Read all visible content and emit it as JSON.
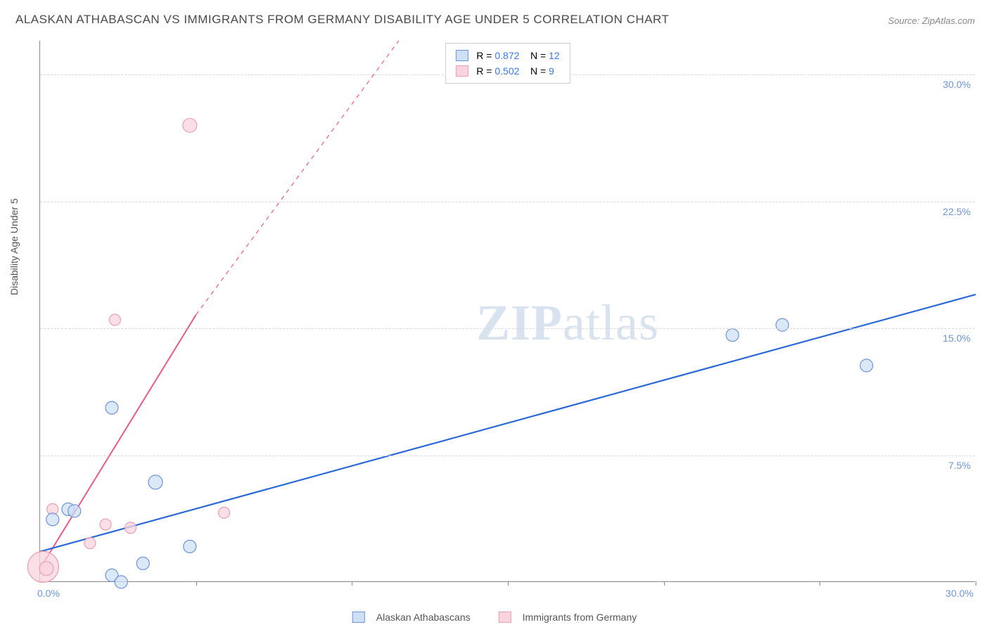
{
  "title": "ALASKAN ATHABASCAN VS IMMIGRANTS FROM GERMANY DISABILITY AGE UNDER 5 CORRELATION CHART",
  "source": "Source: ZipAtlas.com",
  "ylabel": "Disability Age Under 5",
  "watermark": {
    "part1": "ZIP",
    "part2": "atlas"
  },
  "axes": {
    "xmin": 0,
    "xmax": 30,
    "ymin": 0,
    "ymax": 32,
    "x_tick_labels": {
      "min": "0.0%",
      "max": "30.0%"
    },
    "y_ticks": [
      {
        "v": 7.5,
        "label": "7.5%"
      },
      {
        "v": 15.0,
        "label": "15.0%"
      },
      {
        "v": 22.5,
        "label": "22.5%"
      },
      {
        "v": 30.0,
        "label": "30.0%"
      }
    ],
    "x_tick_marks": [
      5,
      10,
      15,
      20,
      25,
      30
    ],
    "grid_color": "#d8d8d8",
    "tick_color": "#6d94d6",
    "axis_color": "#888888"
  },
  "colors": {
    "blue_stroke": "#6d94d6",
    "blue_fill": "#cfe0f5",
    "blue_line": "#2b68d8",
    "pink_stroke": "#e79fb4",
    "pink_fill": "#f9d4de",
    "pink_line": "#e75a8a"
  },
  "stats_legend": {
    "rows": [
      {
        "color": "blue",
        "r_label": "R =",
        "r": "0.872",
        "n_label": "N =",
        "n": "12"
      },
      {
        "color": "pink",
        "r_label": "R =",
        "r": "0.502",
        "n_label": "N =",
        "n": "9"
      }
    ]
  },
  "bottom_legend": {
    "series1": "Alaskan Athabascans",
    "series2": "Immigrants from Germany"
  },
  "series_blue": {
    "label": "Alaskan Athabascans",
    "marker_radius": 9,
    "trend": {
      "x1": 0,
      "y1": 1.8,
      "x2": 30,
      "y2": 17.0,
      "width": 2.2
    },
    "points": [
      {
        "x": 0.4,
        "y": 3.7,
        "r": 9
      },
      {
        "x": 0.9,
        "y": 4.3,
        "r": 9
      },
      {
        "x": 2.3,
        "y": 0.4,
        "r": 9
      },
      {
        "x": 2.6,
        "y": 0.0,
        "r": 9
      },
      {
        "x": 3.3,
        "y": 1.1,
        "r": 9
      },
      {
        "x": 2.3,
        "y": 10.3,
        "r": 9
      },
      {
        "x": 3.7,
        "y": 5.9,
        "r": 10
      },
      {
        "x": 4.8,
        "y": 2.1,
        "r": 9
      },
      {
        "x": 22.2,
        "y": 14.6,
        "r": 9
      },
      {
        "x": 23.8,
        "y": 15.2,
        "r": 9
      },
      {
        "x": 26.5,
        "y": 12.8,
        "r": 9
      },
      {
        "x": 1.1,
        "y": 4.2,
        "r": 9
      }
    ]
  },
  "series_pink": {
    "label": "Immigrants from Germany",
    "marker_radius": 9,
    "trend_solid": {
      "x1": 0,
      "y1": 0.8,
      "x2": 5.0,
      "y2": 15.8,
      "width": 2.0
    },
    "trend_dashed": {
      "x1": 5.0,
      "y1": 15.8,
      "x2": 11.5,
      "y2": 32,
      "width": 1.2,
      "dash": "6 6"
    },
    "points": [
      {
        "x": 0.1,
        "y": 0.9,
        "r": 22
      },
      {
        "x": 0.2,
        "y": 0.8,
        "r": 10
      },
      {
        "x": 1.6,
        "y": 2.3,
        "r": 8
      },
      {
        "x": 2.1,
        "y": 3.4,
        "r": 8
      },
      {
        "x": 2.9,
        "y": 3.2,
        "r": 8
      },
      {
        "x": 2.4,
        "y": 15.5,
        "r": 8
      },
      {
        "x": 4.8,
        "y": 27.0,
        "r": 10
      },
      {
        "x": 5.9,
        "y": 4.1,
        "r": 8
      },
      {
        "x": 0.4,
        "y": 4.3,
        "r": 8
      }
    ]
  }
}
